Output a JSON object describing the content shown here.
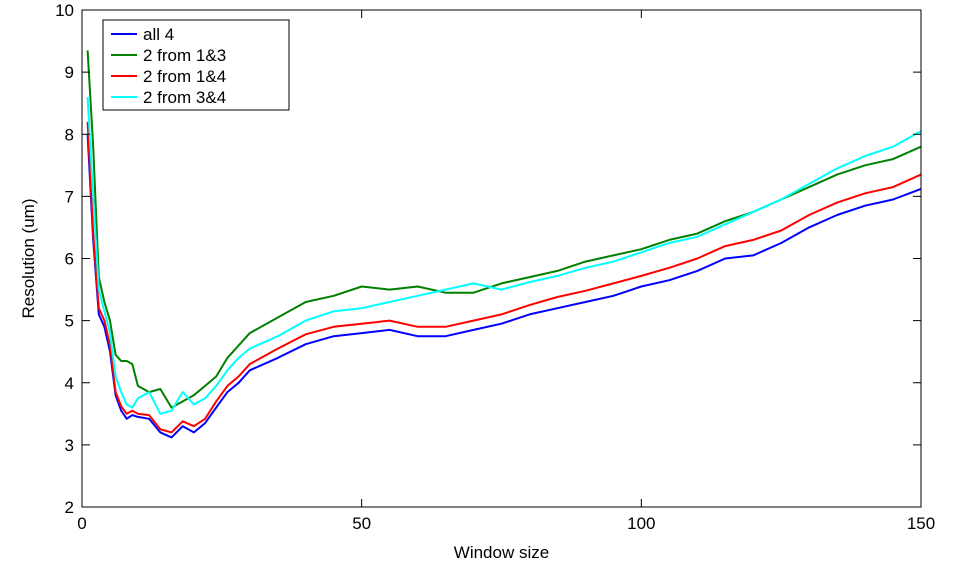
{
  "chart_data": {
    "type": "line",
    "title": "",
    "xlabel": "Window size",
    "ylabel": "Resolution (um)",
    "xlim": [
      0,
      150
    ],
    "ylim": [
      2,
      10
    ],
    "xticks": [
      0,
      50,
      100,
      150
    ],
    "yticks": [
      2,
      3,
      4,
      5,
      6,
      7,
      8,
      9,
      10
    ],
    "grid": false,
    "legend_position": "top-left",
    "x": [
      1,
      2,
      3,
      4,
      5,
      6,
      7,
      8,
      9,
      10,
      12,
      14,
      16,
      18,
      20,
      22,
      24,
      26,
      28,
      30,
      35,
      40,
      45,
      50,
      55,
      60,
      65,
      70,
      75,
      80,
      85,
      90,
      95,
      100,
      105,
      110,
      115,
      120,
      125,
      130,
      135,
      140,
      145,
      150
    ],
    "series": [
      {
        "name": "all 4",
        "color": "#0000ff",
        "values": [
          8.0,
          6.3,
          5.1,
          4.9,
          4.5,
          3.8,
          3.55,
          3.42,
          3.48,
          3.45,
          3.42,
          3.2,
          3.12,
          3.3,
          3.2,
          3.35,
          3.6,
          3.85,
          4.0,
          4.2,
          4.4,
          4.62,
          4.75,
          4.8,
          4.85,
          4.75,
          4.75,
          4.85,
          4.95,
          5.1,
          5.2,
          5.3,
          5.4,
          5.55,
          5.65,
          5.8,
          6.0,
          6.05,
          6.25,
          6.5,
          6.7,
          6.85,
          6.95,
          7.12
        ]
      },
      {
        "name": "2 from 1&3",
        "color": "#008000",
        "values": [
          9.35,
          7.8,
          5.7,
          5.3,
          5.0,
          4.45,
          4.35,
          4.35,
          4.3,
          3.95,
          3.85,
          3.9,
          3.6,
          3.7,
          3.8,
          3.95,
          4.1,
          4.4,
          4.6,
          4.8,
          5.05,
          5.3,
          5.4,
          5.55,
          5.5,
          5.55,
          5.45,
          5.45,
          5.6,
          5.7,
          5.8,
          5.95,
          6.05,
          6.15,
          6.3,
          6.4,
          6.6,
          6.75,
          6.95,
          7.15,
          7.35,
          7.5,
          7.6,
          7.8
        ]
      },
      {
        "name": "2 from 1&4",
        "color": "#ff0000",
        "values": [
          8.2,
          6.4,
          5.2,
          5.0,
          4.6,
          3.85,
          3.62,
          3.5,
          3.55,
          3.5,
          3.48,
          3.25,
          3.2,
          3.38,
          3.3,
          3.42,
          3.7,
          3.95,
          4.1,
          4.3,
          4.55,
          4.78,
          4.9,
          4.95,
          5.0,
          4.9,
          4.9,
          5.0,
          5.1,
          5.25,
          5.38,
          5.48,
          5.6,
          5.72,
          5.85,
          6.0,
          6.2,
          6.3,
          6.45,
          6.7,
          6.9,
          7.05,
          7.15,
          7.35
        ]
      },
      {
        "name": "2 from 3&4",
        "color": "#00ffff",
        "values": [
          8.6,
          7.0,
          5.5,
          5.15,
          4.8,
          4.1,
          3.85,
          3.65,
          3.6,
          3.75,
          3.85,
          3.5,
          3.55,
          3.85,
          3.65,
          3.75,
          3.95,
          4.2,
          4.4,
          4.55,
          4.75,
          5.0,
          5.15,
          5.2,
          5.3,
          5.4,
          5.5,
          5.6,
          5.5,
          5.62,
          5.72,
          5.85,
          5.95,
          6.1,
          6.25,
          6.35,
          6.55,
          6.75,
          6.95,
          7.2,
          7.45,
          7.65,
          7.8,
          8.05
        ]
      }
    ]
  }
}
